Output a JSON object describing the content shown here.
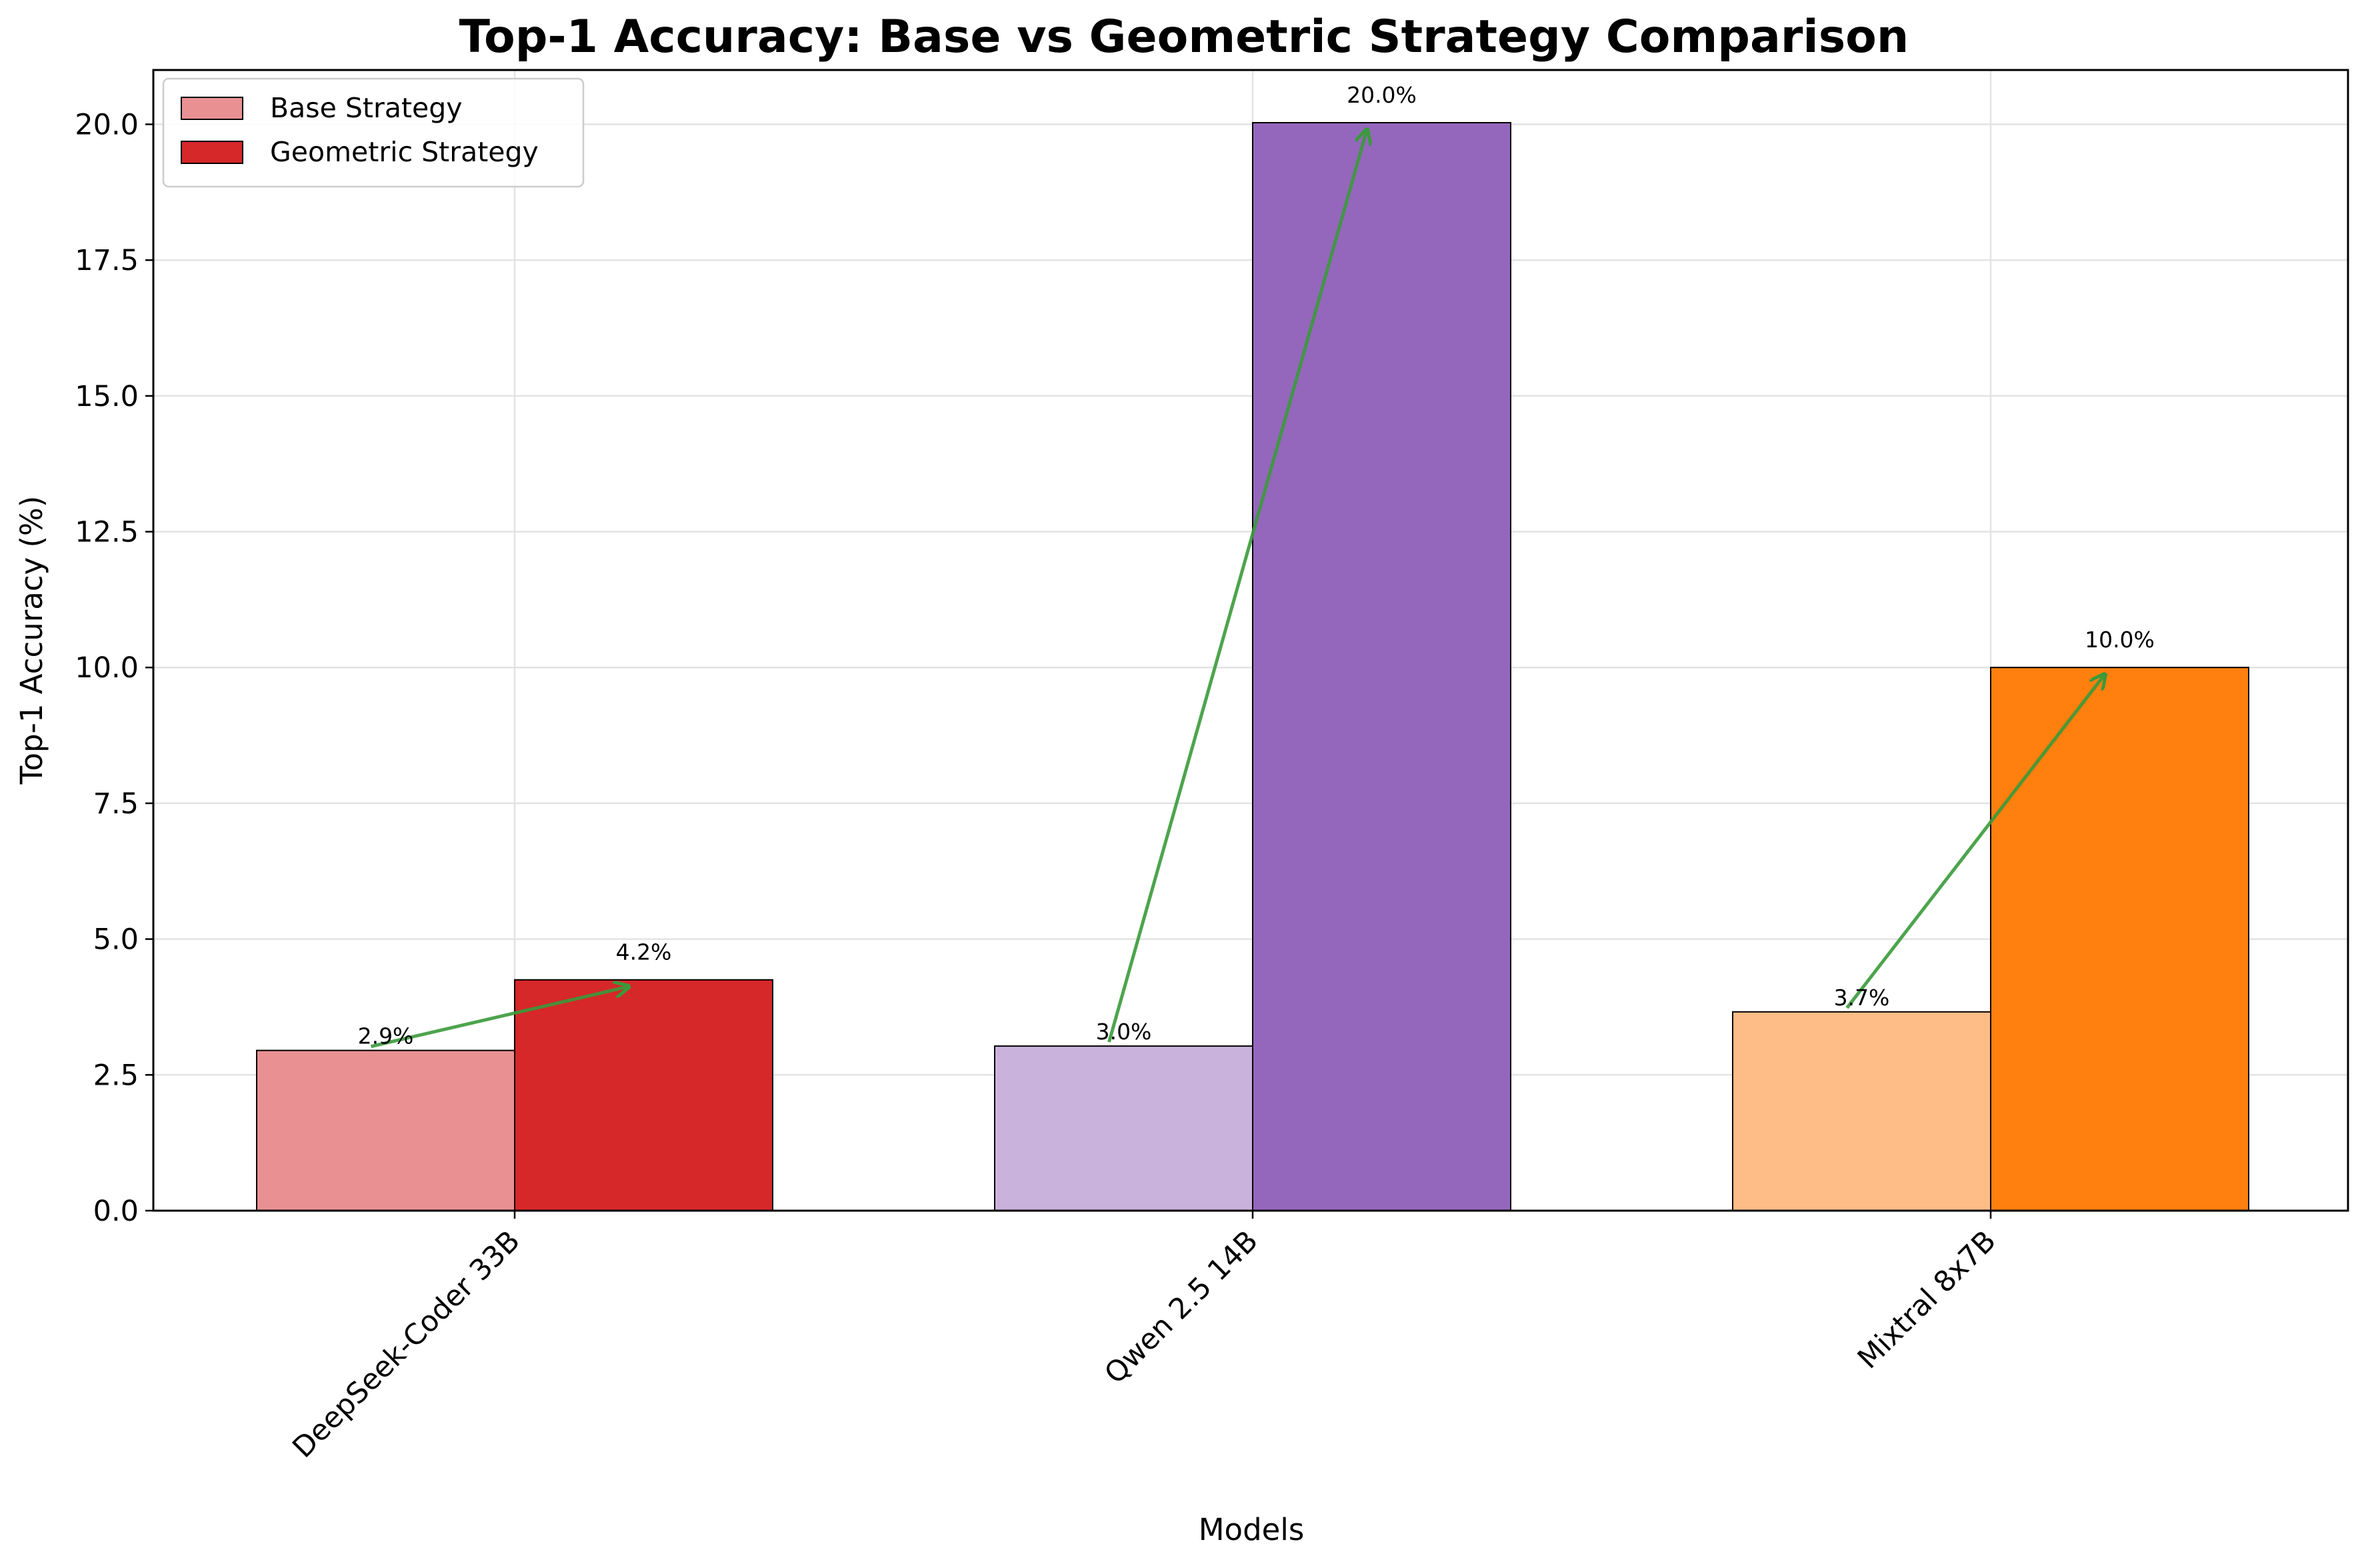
{
  "chart_data": {
    "type": "bar",
    "title": "Top-1 Accuracy: Base vs Geometric Strategy Comparison",
    "xlabel": "Models",
    "ylabel": "Top-1 Accuracy (%)",
    "categories": [
      "DeepSeek-Coder 33B",
      "Qwen 2.5 14B",
      "Mixtral 8x7B"
    ],
    "series": [
      {
        "name": "Base Strategy",
        "values": [
          2.95,
          3.03,
          3.66
        ],
        "labels": [
          "2.9%",
          "3.0%",
          "3.7%"
        ],
        "colors": [
          "#e99093",
          "#c9b2dc",
          "#febc86"
        ]
      },
      {
        "name": "Geometric Strategy",
        "values": [
          4.25,
          20.03,
          10.0
        ],
        "labels": [
          "4.2%",
          "20.0%",
          "10.0%"
        ],
        "colors": [
          "#d62729",
          "#9467bd",
          "#ff7f0f"
        ]
      }
    ],
    "ylim": [
      0,
      21
    ],
    "yticks": [
      0,
      2.5,
      5,
      7.5,
      10,
      12.5,
      15,
      17.5,
      20
    ],
    "ytick_labels": [
      "0.0",
      "2.5",
      "5.0",
      "7.5",
      "10.0",
      "12.5",
      "15.0",
      "17.5",
      "20.0"
    ],
    "grid": true,
    "legend": "top-left",
    "annotations": "green arrows from each base bar to its geometric bar",
    "arrow_color": "#3a9a3a"
  }
}
